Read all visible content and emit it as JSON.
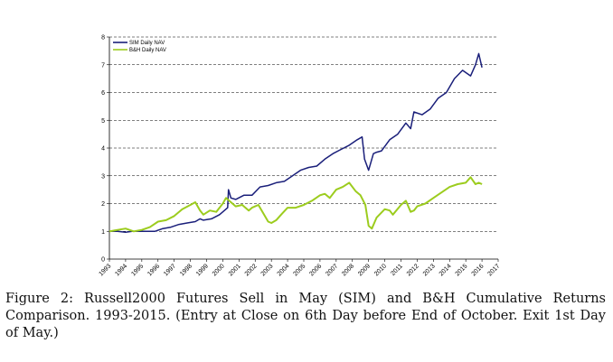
{
  "caption": "Figure 2: Russell2000  Futures Sell in May (SIM) and B&H Cumulative Returns Comparison. 1993-2015. (Entry at Close on 6th Day before End of October. Exit 1st Day of May.)",
  "chart_data": {
    "type": "line",
    "title": "",
    "xlabel": "",
    "ylabel": "",
    "xlim": [
      1993,
      2017
    ],
    "ylim": [
      0,
      8
    ],
    "x_ticks": [
      "1993",
      "1994",
      "1995",
      "1996",
      "1997",
      "1998",
      "1999",
      "2000",
      "2001",
      "2002",
      "2003",
      "2004",
      "2005",
      "2006",
      "2007",
      "2008",
      "2009",
      "2010",
      "2011",
      "2012",
      "2013",
      "2014",
      "2015",
      "2016",
      "2017"
    ],
    "y_ticks": [
      "0",
      "1",
      "2",
      "3",
      "4",
      "5",
      "6",
      "7",
      "8"
    ],
    "grid": "horizontal-dashed",
    "legend_position": "top-left",
    "colors": {
      "sim": "#1a1f7a",
      "bh": "#9ccc1e"
    },
    "series": [
      {
        "name": "SIM Daily NAV",
        "x": [
          1993.0,
          1993.5,
          1994.0,
          1994.4,
          1994.8,
          1995.3,
          1995.8,
          1996.3,
          1996.8,
          1997.3,
          1997.8,
          1998.3,
          1998.6,
          1998.8,
          1999.3,
          1999.8,
          2000.3,
          2000.35,
          2000.5,
          2000.8,
          2001.3,
          2001.8,
          2002.3,
          2002.8,
          2003.3,
          2003.8,
          2004.3,
          2004.8,
          2005.3,
          2005.8,
          2006.3,
          2006.8,
          2007.3,
          2007.8,
          2008.3,
          2008.6,
          2008.75,
          2009.0,
          2009.3,
          2009.5,
          2009.8,
          2010.3,
          2010.8,
          2011.3,
          2011.6,
          2011.8,
          2012.3,
          2012.8,
          2013.3,
          2013.8,
          2014.3,
          2014.8,
          2015.3,
          2015.6,
          2015.8,
          2016.0
        ],
        "values": [
          1.0,
          1.0,
          0.97,
          1.0,
          1.0,
          1.0,
          1.0,
          1.1,
          1.15,
          1.25,
          1.3,
          1.35,
          1.45,
          1.4,
          1.45,
          1.6,
          1.85,
          2.5,
          2.2,
          2.15,
          2.3,
          2.3,
          2.6,
          2.65,
          2.75,
          2.8,
          3.0,
          3.2,
          3.3,
          3.35,
          3.6,
          3.8,
          3.95,
          4.1,
          4.3,
          4.4,
          3.6,
          3.2,
          3.8,
          3.85,
          3.9,
          4.3,
          4.5,
          4.9,
          4.7,
          5.3,
          5.2,
          5.4,
          5.8,
          6.0,
          6.5,
          6.8,
          6.6,
          7.0,
          7.4,
          6.9
        ]
      },
      {
        "name": "B&H Daily NAV",
        "x": [
          1993.0,
          1993.5,
          1994.0,
          1994.5,
          1995.0,
          1995.5,
          1996.0,
          1996.5,
          1997.0,
          1997.5,
          1998.0,
          1998.3,
          1998.6,
          1998.8,
          1999.2,
          1999.6,
          2000.0,
          2000.2,
          2000.5,
          2000.8,
          2001.2,
          2001.6,
          2001.8,
          2002.2,
          2002.5,
          2002.8,
          2003.0,
          2003.3,
          2003.6,
          2004.0,
          2004.5,
          2005.0,
          2005.5,
          2006.0,
          2006.3,
          2006.6,
          2007.0,
          2007.4,
          2007.8,
          2008.2,
          2008.5,
          2008.8,
          2009.0,
          2009.2,
          2009.5,
          2010.0,
          2010.3,
          2010.5,
          2011.0,
          2011.3,
          2011.6,
          2011.8,
          2012.0,
          2012.5,
          2013.0,
          2013.5,
          2014.0,
          2014.5,
          2015.0,
          2015.3,
          2015.6,
          2015.8,
          2016.0
        ],
        "values": [
          1.0,
          1.05,
          1.1,
          1.0,
          1.05,
          1.15,
          1.35,
          1.4,
          1.55,
          1.8,
          1.95,
          2.05,
          1.75,
          1.6,
          1.75,
          1.7,
          2.0,
          2.2,
          2.05,
          1.9,
          1.95,
          1.75,
          1.85,
          1.95,
          1.65,
          1.35,
          1.3,
          1.4,
          1.6,
          1.85,
          1.85,
          1.95,
          2.1,
          2.3,
          2.35,
          2.2,
          2.5,
          2.6,
          2.75,
          2.45,
          2.3,
          1.95,
          1.2,
          1.1,
          1.5,
          1.8,
          1.75,
          1.6,
          1.95,
          2.1,
          1.7,
          1.75,
          1.9,
          2.0,
          2.2,
          2.4,
          2.6,
          2.7,
          2.75,
          2.95,
          2.7,
          2.75,
          2.7
        ]
      }
    ]
  }
}
